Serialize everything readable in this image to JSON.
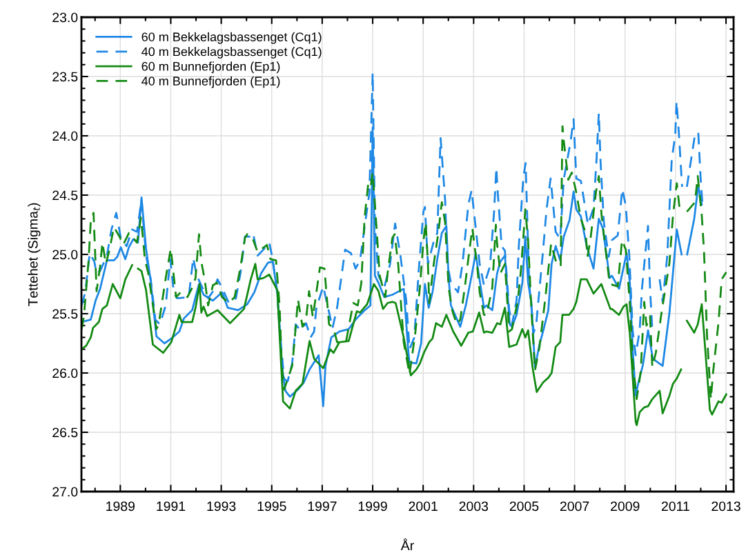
{
  "chart_data": {
    "type": "line",
    "xlabel": "År",
    "ylabel": "Tettehet (Sigma$_{t}$)",
    "xlim": [
      1987.46,
      2013.3
    ],
    "ylim": [
      27.0,
      23.0
    ],
    "xticks": [
      {
        "value": 1988,
        "label": null
      },
      1989,
      {
        "value": 1990,
        "label": null
      },
      1991,
      {
        "value": 1992,
        "label": null
      },
      1993,
      {
        "value": 1994,
        "label": null
      },
      1995,
      {
        "value": 1996,
        "label": null
      },
      1997,
      {
        "value": 1998,
        "label": null
      },
      1999,
      {
        "value": 2000,
        "label": null
      },
      2001,
      {
        "value": 2002,
        "label": null
      },
      2003,
      {
        "value": 2004,
        "label": null
      },
      2005,
      {
        "value": 2006,
        "label": null
      },
      2007,
      {
        "value": 2008,
        "label": null
      },
      2009,
      {
        "value": 2010,
        "label": null
      },
      2011,
      {
        "value": 2012,
        "label": null
      },
      2013
    ],
    "yticks": [
      {
        "value": 23,
        "label": "23.0"
      },
      {
        "value": 23.1,
        "label": null
      },
      {
        "value": 23.2,
        "label": null
      },
      {
        "value": 23.3,
        "label": null
      },
      {
        "value": 23.4,
        "label": null
      },
      {
        "value": 23.5,
        "label": "23.5"
      },
      {
        "value": 23.6,
        "label": null
      },
      {
        "value": 23.7,
        "label": null
      },
      {
        "value": 23.8,
        "label": null
      },
      {
        "value": 23.9,
        "label": null
      },
      {
        "value": 24,
        "label": "24.0"
      },
      {
        "value": 24.1,
        "label": null
      },
      {
        "value": 24.2,
        "label": null
      },
      {
        "value": 24.3,
        "label": null
      },
      {
        "value": 24.4,
        "label": null
      },
      {
        "value": 24.5,
        "label": "24.5"
      },
      {
        "value": 24.6,
        "label": null
      },
      {
        "value": 24.7,
        "label": null
      },
      {
        "value": 24.8,
        "label": null
      },
      {
        "value": 24.9,
        "label": null
      },
      {
        "value": 25,
        "label": "25.0"
      },
      {
        "value": 25.1,
        "label": null
      },
      {
        "value": 25.2,
        "label": null
      },
      {
        "value": 25.3,
        "label": null
      },
      {
        "value": 25.4,
        "label": null
      },
      {
        "value": 25.5,
        "label": "25.5"
      },
      {
        "value": 25.6,
        "label": null
      },
      {
        "value": 25.7,
        "label": null
      },
      {
        "value": 25.8,
        "label": null
      },
      {
        "value": 25.9,
        "label": null
      },
      {
        "value": 26,
        "label": "26.0"
      },
      {
        "value": 26.1,
        "label": null
      },
      {
        "value": 26.2,
        "label": null
      },
      {
        "value": 26.3,
        "label": null
      },
      {
        "value": 26.4,
        "label": null
      },
      {
        "value": 26.5,
        "label": "26.5"
      },
      {
        "value": 26.6,
        "label": null
      },
      {
        "value": 26.7,
        "label": null
      },
      {
        "value": 26.8,
        "label": null
      },
      {
        "value": 26.9,
        "label": null
      },
      {
        "value": 27,
        "label": "27.0"
      }
    ],
    "grid": true,
    "legend": "top left",
    "marker": "none",
    "series": [
      {
        "name": "60 m Bekkelagsbassenget (Cq1)",
        "color": "#1e88e5",
        "line_style": "solid",
        "x": [
          1987.47,
          1987.83,
          1988.02,
          1988.2,
          1988.47,
          1988.75,
          1988.88,
          1989.02,
          1989.2,
          1989.34,
          1989.52,
          1989.7,
          1989.84,
          1990.02,
          1990.2,
          1990.43,
          1990.75,
          1991.02,
          1991.34,
          1991.52,
          1991.85,
          1991.98,
          1992.12,
          1992.3,
          1992.67,
          1993.03,
          1993.26,
          1993.67,
          1994.03,
          1994.31,
          1994.58,
          1994.85,
          1995.04,
          1995.22,
          1995.4,
          1995.54,
          1995.72,
          1996.04,
          1996.27,
          1996.5,
          1996.86,
          1997.04,
          1997.13,
          1997.36,
          1997.68,
          1998.05,
          1998.32,
          1998.64,
          1998.91,
          1999.0,
          1999.09,
          1999.23,
          1999.46,
          1999.78,
          2000.23,
          2000.42,
          2000.46,
          2000.73,
          2000.92,
          2001.07,
          2001.22,
          2001.37,
          2001.56,
          2001.74,
          2001.92,
          2002.01,
          2002.1,
          2002.47,
          2002.69,
          2002.92,
          2003.08,
          2003.24,
          2003.41,
          2003.51,
          2003.74,
          2003.93,
          2004.06,
          2004.24,
          2004.43,
          2004.52,
          2004.7,
          2004.93,
          2005.05,
          2005.16,
          2005.29,
          2005.43,
          2005.61,
          2005.75,
          2005.96,
          2006.09,
          2006.25,
          2006.43,
          2006.57,
          2006.8,
          2006.96,
          2007.07,
          2007.25,
          2007.48,
          2007.75,
          2007.96,
          2008.12,
          2008.39,
          2008.48,
          2008.76,
          2009.06,
          2009.19,
          2009.3,
          2009.42,
          2009.53,
          2009.71,
          2009.91,
          2010.1,
          2010.49,
          2010.76,
          2011.05,
          2011.24,
          2011.35,
          2011.46,
          2011.74,
          2011.9,
          2012.04
        ],
        "values": [
          25.57,
          25.55,
          25.39,
          25.29,
          25.05,
          25.05,
          25.02,
          24.94,
          25.04,
          24.94,
          24.87,
          24.9,
          24.52,
          24.95,
          25.22,
          25.69,
          25.75,
          25.71,
          25.65,
          25.54,
          25.47,
          25.36,
          25.25,
          25.34,
          25.39,
          25.32,
          25.45,
          25.47,
          25.42,
          25.32,
          25.16,
          25.07,
          25.06,
          25.32,
          25.94,
          26.15,
          26.2,
          26.14,
          26.08,
          25.97,
          25.85,
          26.28,
          25.94,
          25.7,
          25.65,
          25.63,
          25.55,
          25.48,
          25.43,
          23.93,
          25.18,
          25.24,
          25.36,
          25.34,
          25.29,
          25.84,
          25.91,
          25.92,
          25.75,
          25.25,
          25.45,
          25.32,
          25.04,
          24.82,
          24.76,
          25.2,
          25.43,
          25.61,
          25.43,
          25.18,
          24.99,
          25.22,
          25.45,
          25.43,
          25.47,
          25.16,
          25.06,
          25.01,
          25.59,
          25.61,
          25.51,
          25.24,
          24.85,
          25.24,
          25.41,
          25.95,
          25.76,
          25.65,
          25.47,
          25.08,
          24.93,
          25.05,
          24.85,
          24.71,
          24.47,
          24.62,
          24.68,
          24.93,
          25.12,
          24.7,
          24.78,
          25.2,
          25.18,
          25.29,
          24.99,
          25.24,
          25.79,
          26.19,
          26.08,
          25.93,
          25.64,
          25.88,
          25.94,
          25.49,
          24.79,
          25.0,
          null,
          25.0,
          24.7,
          24.42,
          24.58
        ]
      },
      {
        "name": "40 m Bekkelagsbassenget (Cq1)",
        "color": "#1e88e5",
        "line_style": "dashed",
        "x": [
          1987.47,
          1987.61,
          1987.79,
          1987.97,
          1988.06,
          1988.2,
          1988.47,
          1988.65,
          1988.84,
          1989.02,
          1989.25,
          1989.47,
          1989.66,
          1989.84,
          1990.02,
          1990.2,
          1990.39,
          1990.57,
          1990.8,
          1990.98,
          1991.12,
          1991.25,
          1991.71,
          1991.89,
          1992.03,
          1992.25,
          1992.48,
          1992.71,
          1992.85,
          1993.03,
          1993.3,
          1993.58,
          1993.76,
          1993.94,
          1994.12,
          1994.26,
          1994.44,
          1994.67,
          1994.9,
          1995.04,
          1995.22,
          1995.36,
          1995.49,
          1995.63,
          1995.81,
          1995.95,
          1996.13,
          1996.36,
          1996.54,
          1996.68,
          1996.77,
          1997.04,
          1997.23,
          1997.41,
          1997.59,
          1997.91,
          1998.14,
          1998.32,
          1998.5,
          1998.68,
          1998.87,
          1999.0,
          1999.09,
          1999.23,
          1999.46,
          1999.69,
          1999.89,
          2000.1,
          2000.33,
          2000.46,
          2000.65,
          2000.83,
          2001.01,
          2001.07,
          2001.19,
          2001.42,
          2001.56,
          2001.69,
          2001.87,
          2001.96,
          2002.1,
          2002.38,
          2002.56,
          2002.79,
          2002.92,
          2003.11,
          2003.24,
          2003.41,
          2003.65,
          2003.81,
          2003.9,
          2003.95,
          2004.11,
          2004.24,
          2004.41,
          2004.52,
          2004.7,
          2004.79,
          2004.97,
          2005.06,
          2005.2,
          2005.38,
          2005.48,
          2005.75,
          2005.89,
          2006.05,
          2006.16,
          2006.25,
          2006.43,
          2006.57,
          2006.84,
          2006.96,
          2007.07,
          2007.25,
          2007.53,
          2007.75,
          2007.87,
          2007.96,
          2008.03,
          2008.16,
          2008.35,
          2008.48,
          2008.71,
          2008.89,
          2009.03,
          2009.17,
          2009.3,
          2009.42,
          2009.58,
          2009.67,
          2009.79,
          2009.91,
          2009.99,
          2010.08,
          2010.2,
          2010.37,
          2010.49,
          2010.67,
          2010.85,
          2010.99,
          2011.04,
          2011.13,
          2011.26,
          2011.35,
          2011.45,
          2011.77,
          2011.9,
          2011.99,
          2012.07
        ],
        "values": [
          25.43,
          25.32,
          24.99,
          25.06,
          25.16,
          25.14,
          25.01,
          24.79,
          24.65,
          24.86,
          24.93,
          24.79,
          24.81,
          24.54,
          25.01,
          25.2,
          25.55,
          25.59,
          25.43,
          25.04,
          25.32,
          25.37,
          25.36,
          25.03,
          25.18,
          25.28,
          25.37,
          25.3,
          25.21,
          25.28,
          25.41,
          25.37,
          25.16,
          24.85,
          24.85,
          24.82,
          25.01,
          24.96,
          24.9,
          25.04,
          25.33,
          25.74,
          26.05,
          26.07,
          25.92,
          25.59,
          25.64,
          25.58,
          25.7,
          25.65,
          25.45,
          25.27,
          25.45,
          25.62,
          25.45,
          24.96,
          24.99,
          25.12,
          25.05,
          24.77,
          24.48,
          23.47,
          24.77,
          25.18,
          25.28,
          25.08,
          24.74,
          25.01,
          25.39,
          25.8,
          25.7,
          25.12,
          24.64,
          24.6,
          25.08,
          24.89,
          24.82,
          24.02,
          24.54,
          25.08,
          25.24,
          25.32,
          25.08,
          24.58,
          24.46,
          24.83,
          25.08,
          25.26,
          25.1,
          24.64,
          24.27,
          24.46,
          24.93,
          24.97,
          25.47,
          25.59,
          25.39,
          24.93,
          24.35,
          24.23,
          25.24,
          25.66,
          25.59,
          24.97,
          24.62,
          24.36,
          24.6,
          24.81,
          24.87,
          24.37,
          24.05,
          23.86,
          24.36,
          24.38,
          24.75,
          24.61,
          24.2,
          23.81,
          24.22,
          24.73,
          25.02,
          24.88,
          24.84,
          24.45,
          24.59,
          25.02,
          25.64,
          25.85,
          25.64,
          25.29,
          25.02,
          24.76,
          25.29,
          25.64,
          null,
          25.21,
          25.4,
          25.02,
          24.2,
          23.99,
          23.71,
          23.97,
          24.43,
          null,
          24.43,
          23.99,
          23.97,
          24.34,
          24.59
        ]
      },
      {
        "name": "60 m Bunnefjorden (Ep1)",
        "color": "#138a13",
        "line_style": "solid",
        "x": [
          1987.47,
          1987.65,
          1987.83,
          1987.92,
          1988.15,
          1988.29,
          1988.47,
          1988.7,
          1989.0,
          1989.2,
          1989.47,
          1989.6,
          1989.7,
          1989.84,
          1990.02,
          1990.29,
          1990.7,
          1991.02,
          1991.34,
          1991.43,
          1991.85,
          1991.98,
          1992.14,
          1992.21,
          1992.3,
          1992.44,
          1992.85,
          1993.35,
          1993.9,
          1994.17,
          1994.35,
          1994.44,
          1994.67,
          1994.9,
          1995.22,
          1995.45,
          1995.72,
          1995.95,
          1996.22,
          1996.5,
          1996.68,
          1997.04,
          1997.32,
          1997.45,
          1997.68,
          1998.05,
          1998.37,
          1998.5,
          1998.78,
          1999.05,
          1999.23,
          1999.41,
          1999.59,
          1999.78,
          1999.91,
          2000.23,
          2000.51,
          2000.73,
          2000.87,
          2001.05,
          2001.24,
          2001.37,
          2001.51,
          2001.74,
          2001.92,
          2002.19,
          2002.51,
          2002.79,
          2002.97,
          2003.22,
          2003.41,
          2003.51,
          2003.74,
          2003.93,
          2004.06,
          2004.24,
          2004.41,
          2004.7,
          2004.93,
          2005.05,
          2005.16,
          2005.34,
          2005.5,
          2005.75,
          2005.96,
          2006.09,
          2006.25,
          2006.43,
          2006.52,
          2006.78,
          2006.96,
          2007.07,
          2007.25,
          2007.48,
          2007.75,
          2008.06,
          2008.42,
          2008.48,
          2008.76,
          2008.94,
          2009.06,
          2009.19,
          2009.42,
          2009.46,
          2009.58,
          2009.76,
          2009.91,
          2010.08,
          2010.37,
          2010.49,
          2010.76,
          2010.9,
          2011.04,
          2011.22,
          2011.35,
          2011.45,
          2011.74,
          2011.88,
          2012.04,
          2012.36,
          2012.45,
          2012.7,
          2012.83,
          2013.01
        ],
        "values": [
          25.8,
          25.77,
          25.7,
          25.62,
          25.57,
          25.46,
          25.43,
          25.25,
          25.37,
          25.21,
          25.09,
          null,
          25.12,
          25.14,
          25.3,
          25.76,
          25.83,
          25.74,
          25.51,
          25.57,
          25.57,
          25.45,
          25.25,
          25.49,
          25.44,
          25.52,
          25.47,
          25.58,
          25.46,
          25.21,
          25.08,
          25.21,
          25.2,
          25.17,
          25.3,
          26.24,
          26.3,
          26.15,
          26.09,
          25.73,
          25.88,
          25.96,
          25.8,
          25.83,
          25.74,
          25.73,
          25.48,
          25.49,
          25.42,
          25.25,
          25.31,
          25.46,
          25.41,
          25.4,
          25.41,
          25.7,
          26.02,
          25.97,
          25.92,
          25.82,
          25.74,
          25.71,
          25.58,
          25.61,
          25.51,
          25.65,
          25.77,
          25.66,
          25.65,
          25.49,
          25.66,
          25.65,
          25.66,
          25.58,
          25.59,
          25.45,
          25.78,
          25.76,
          25.63,
          25.7,
          25.64,
          25.96,
          26.16,
          26.08,
          26.04,
          26.0,
          25.78,
          25.74,
          25.51,
          25.51,
          25.46,
          25.4,
          25.21,
          25.21,
          25.33,
          25.25,
          25.46,
          25.46,
          25.51,
          25.44,
          25.42,
          25.67,
          26.41,
          26.44,
          26.33,
          26.29,
          26.28,
          26.22,
          26.15,
          26.34,
          26.19,
          26.09,
          26.05,
          25.97,
          null,
          25.56,
          25.66,
          25.59,
          25.42,
          26.31,
          26.35,
          26.24,
          26.25,
          26.18
        ]
      },
      {
        "name": "40 m Bunnefjorden (Ep1)",
        "color": "#138a13",
        "line_style": "dashed",
        "x": [
          1987.47,
          1987.56,
          1987.74,
          1987.83,
          1987.94,
          1988.02,
          1988.06,
          1988.2,
          1988.29,
          1988.43,
          1988.56,
          1988.75,
          1988.97,
          1989.11,
          1989.34,
          1989.47,
          1989.66,
          1989.82,
          1989.98,
          1990.11,
          1990.43,
          1990.52,
          1990.8,
          1991.0,
          1991.21,
          1991.39,
          1991.66,
          1991.85,
          1991.98,
          1992.12,
          1992.21,
          1992.35,
          1992.48,
          1992.67,
          1992.83,
          1993.03,
          1993.3,
          1993.53,
          1993.76,
          1993.94,
          1994.03,
          1994.22,
          1994.44,
          1994.81,
          1994.95,
          1995.17,
          1995.31,
          1995.4,
          1995.49,
          1995.81,
          1995.9,
          1996.04,
          1996.22,
          1996.36,
          1996.48,
          1996.63,
          1996.91,
          1997.09,
          1997.27,
          1997.45,
          1997.59,
          1997.95,
          1998.23,
          1998.41,
          1998.55,
          1998.68,
          1998.82,
          1998.91,
          1999.0,
          1999.09,
          1999.28,
          1999.5,
          1999.59,
          1999.78,
          1999.87,
          2000.01,
          2000.23,
          2000.46,
          2000.69,
          2000.87,
          2001.01,
          2001.1,
          2001.19,
          2001.24,
          2001.42,
          2001.6,
          2001.74,
          2001.87,
          2002.01,
          2002.15,
          2002.33,
          2002.47,
          2002.65,
          2002.83,
          2002.95,
          2003.15,
          2003.24,
          2003.41,
          2003.51,
          2003.74,
          2003.88,
          2003.93,
          2004.06,
          2004.24,
          2004.41,
          2004.52,
          2004.75,
          2004.88,
          2005.05,
          2005.16,
          2005.29,
          2005.43,
          2005.61,
          2005.84,
          2006.07,
          2006.29,
          2006.45,
          2006.52,
          2006.57,
          2006.75,
          2006.89,
          2007.05,
          2007.25,
          2007.44,
          2007.51,
          2007.62,
          2007.85,
          2007.96,
          2008.07,
          2008.39,
          2008.71,
          2008.88,
          2009.03,
          2009.19,
          2009.3,
          2009.46,
          2009.62,
          2009.76,
          2009.85,
          2009.99,
          2010.08,
          2010.22,
          2010.44,
          2010.76,
          2010.9,
          2011.05,
          2011.17,
          2011.3,
          2011.45,
          2011.77,
          2011.88,
          2012.04,
          2012.13,
          2012.25,
          2012.4,
          2012.49,
          2012.7,
          2012.83,
          2013.01
        ],
        "values": [
          25.63,
          25.52,
          25.06,
          24.72,
          24.65,
          25.08,
          25.31,
          25.1,
          24.9,
          25.08,
          24.97,
          24.77,
          24.85,
          24.92,
          24.82,
          24.85,
          24.9,
          24.69,
          25.05,
          25.16,
          25.63,
          25.59,
          25.2,
          24.95,
          25.36,
          25.32,
          25.36,
          25.28,
          25.2,
          24.83,
          25.06,
          25.22,
          25.43,
          25.26,
          25.24,
          25.36,
          25.41,
          25.36,
          25.11,
          24.86,
          24.83,
          24.85,
          24.98,
          24.92,
          25.04,
          25.05,
          25.43,
          25.94,
          26.14,
          25.94,
          25.74,
          25.38,
          25.61,
          25.55,
          25.31,
          25.53,
          25.11,
          25.12,
          25.59,
          25.62,
          25.74,
          25.73,
          25.41,
          25.43,
          25.24,
          24.69,
          24.41,
          24.44,
          24.31,
          24.58,
          25.18,
          25.36,
          25.16,
          24.86,
          24.83,
          25.08,
          25.74,
          26.01,
          25.66,
          25.28,
          24.89,
          24.73,
          25.08,
          25.41,
          25.08,
          24.82,
          24.56,
          24.73,
          25.28,
          25.47,
          25.59,
          25.55,
          25.28,
          24.97,
          24.78,
          25.12,
          25.32,
          25.51,
          25.51,
          25.28,
          24.75,
          24.91,
          25.16,
          25.08,
          25.65,
          25.63,
          25.39,
          25.12,
          24.62,
          24.89,
          25.47,
          25.98,
          25.78,
          25.37,
          24.91,
          25.08,
          25.1,
          23.92,
          24.04,
          24.37,
          24.31,
          24.46,
          24.7,
          24.82,
          25.02,
          24.89,
          24.47,
          24.34,
          24.67,
          25.25,
          25.27,
          24.88,
          24.96,
          25.42,
          25.89,
          26.22,
          25.99,
          25.4,
          25.6,
          25.52,
          25.95,
          25.83,
          25.5,
          25.07,
          24.67,
          24.4,
          24.63,
          null,
          24.64,
          24.56,
          24.34,
          24.67,
          24.98,
          25.69,
          26.22,
          25.99,
          25.58,
          25.21,
          25.15
        ]
      }
    ]
  }
}
